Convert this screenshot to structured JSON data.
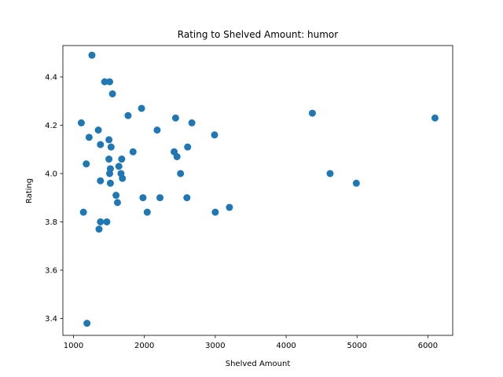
{
  "chart_data": {
    "type": "scatter",
    "title": "Rating to Shelved Amount: humor",
    "xlabel": "Shelved Amount",
    "ylabel": "Rating",
    "xlim": [
      850,
      6350
    ],
    "ylim": [
      3.33,
      4.53
    ],
    "xticks": [
      1000,
      2000,
      3000,
      4000,
      5000,
      6000
    ],
    "yticks": [
      3.4,
      3.6,
      3.8,
      4.0,
      4.2,
      4.4
    ],
    "ytick_labels": [
      "3.4",
      "3.6",
      "3.8",
      "4.0",
      "4.2",
      "4.4"
    ],
    "grid": false,
    "color": "#1f77b4",
    "series": [
      {
        "x": [
          1260,
          1440,
          1510,
          1550,
          1960,
          1110,
          1770,
          1220,
          1350,
          1500,
          1380,
          1530,
          1840,
          1180,
          1500,
          1680,
          1520,
          1640,
          1510,
          1670,
          1690,
          1380,
          1600,
          1520,
          1620,
          1980,
          1140,
          1380,
          1470,
          1360,
          1190,
          2180,
          2440,
          2670,
          2610,
          2420,
          2460,
          2510,
          2220,
          2040,
          2600,
          2990,
          3000,
          3200,
          4370,
          4620,
          4990,
          6100
        ],
        "y": [
          4.49,
          4.38,
          4.38,
          4.33,
          4.27,
          4.21,
          4.24,
          4.15,
          4.18,
          4.14,
          4.12,
          4.11,
          4.09,
          4.04,
          4.06,
          4.06,
          4.02,
          4.03,
          4.0,
          4.0,
          3.98,
          3.97,
          3.91,
          3.96,
          3.88,
          3.9,
          3.84,
          3.8,
          3.8,
          3.77,
          3.38,
          4.18,
          4.23,
          4.21,
          4.11,
          4.09,
          4.07,
          4.0,
          3.9,
          3.84,
          3.9,
          4.16,
          3.84,
          3.86,
          4.25,
          4.0,
          3.96,
          4.23
        ]
      }
    ]
  }
}
